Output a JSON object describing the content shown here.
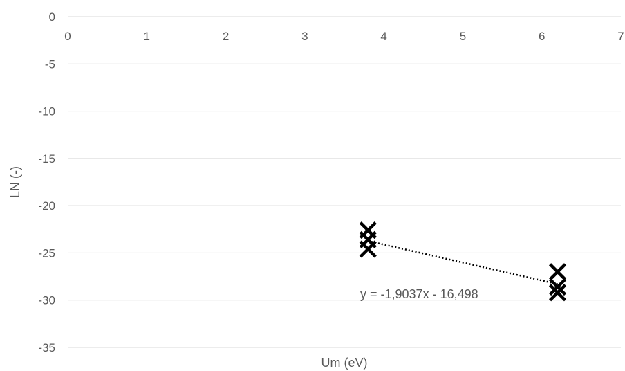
{
  "chart_data": {
    "type": "scatter",
    "title": "",
    "xlabel": "Um (eV)",
    "ylabel": "LN (-)",
    "xlim": [
      0,
      7
    ],
    "ylim": [
      -35,
      0
    ],
    "x_ticks": [
      0,
      1,
      2,
      3,
      4,
      5,
      6,
      7
    ],
    "x_tick_labels": [
      "0",
      "1",
      "2",
      "3",
      "4",
      "5",
      "6",
      "7"
    ],
    "y_ticks": [
      0,
      -5,
      -10,
      -15,
      -20,
      -25,
      -30,
      -35
    ],
    "y_tick_labels": [
      "0",
      "-5",
      "-10",
      "-15",
      "-20",
      "-25",
      "-30",
      "-35"
    ],
    "grid": "horizontal",
    "legend": "none",
    "series": [
      {
        "marker": "x",
        "color": "#000000",
        "points": [
          {
            "x": 3.8,
            "y": -22.6
          },
          {
            "x": 3.8,
            "y": -23.6
          },
          {
            "x": 3.8,
            "y": -24.6
          },
          {
            "x": 6.2,
            "y": -27.0
          },
          {
            "x": 6.2,
            "y": -28.6
          },
          {
            "x": 6.2,
            "y": -29.2
          }
        ]
      }
    ],
    "trendline": {
      "type": "linear",
      "slope": -1.9037,
      "intercept": -16.498,
      "x_range": [
        3.8,
        6.2
      ],
      "style": "dotted",
      "color": "#000000",
      "equation_label": "y = -1,9037x - 16,498"
    }
  }
}
